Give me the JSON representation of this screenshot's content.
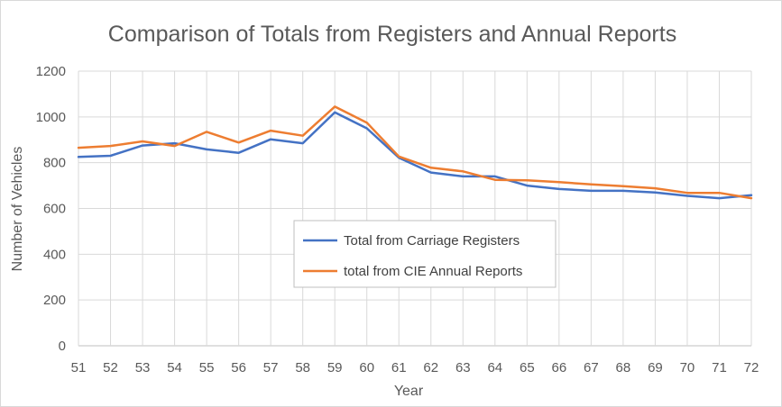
{
  "chart_data": {
    "type": "line",
    "title": "Comparison of Totals from Registers and Annual Reports",
    "xlabel": "Year",
    "ylabel": "Number of Vehicles",
    "x": [
      "51",
      "52",
      "53",
      "54",
      "55",
      "56",
      "57",
      "58",
      "59",
      "60",
      "61",
      "62",
      "63",
      "64",
      "65",
      "66",
      "67",
      "68",
      "69",
      "70",
      "71",
      "72"
    ],
    "ylim": [
      0,
      1200
    ],
    "yticks": [
      "0",
      "200",
      "400",
      "600",
      "800",
      "1000",
      "1200"
    ],
    "grid": true,
    "legend_position": "center",
    "series": [
      {
        "name": "Total from Carriage Registers",
        "color": "#4472c4",
        "values": [
          825,
          830,
          875,
          885,
          858,
          843,
          902,
          885,
          1020,
          950,
          822,
          757,
          740,
          740,
          700,
          685,
          677,
          677,
          670,
          655,
          645,
          658
        ]
      },
      {
        "name": "total from CIE Annual Reports",
        "color": "#ed7d31",
        "values": [
          865,
          873,
          893,
          873,
          935,
          888,
          940,
          918,
          1045,
          975,
          827,
          778,
          762,
          725,
          723,
          715,
          705,
          697,
          688,
          668,
          668,
          645
        ]
      }
    ]
  }
}
